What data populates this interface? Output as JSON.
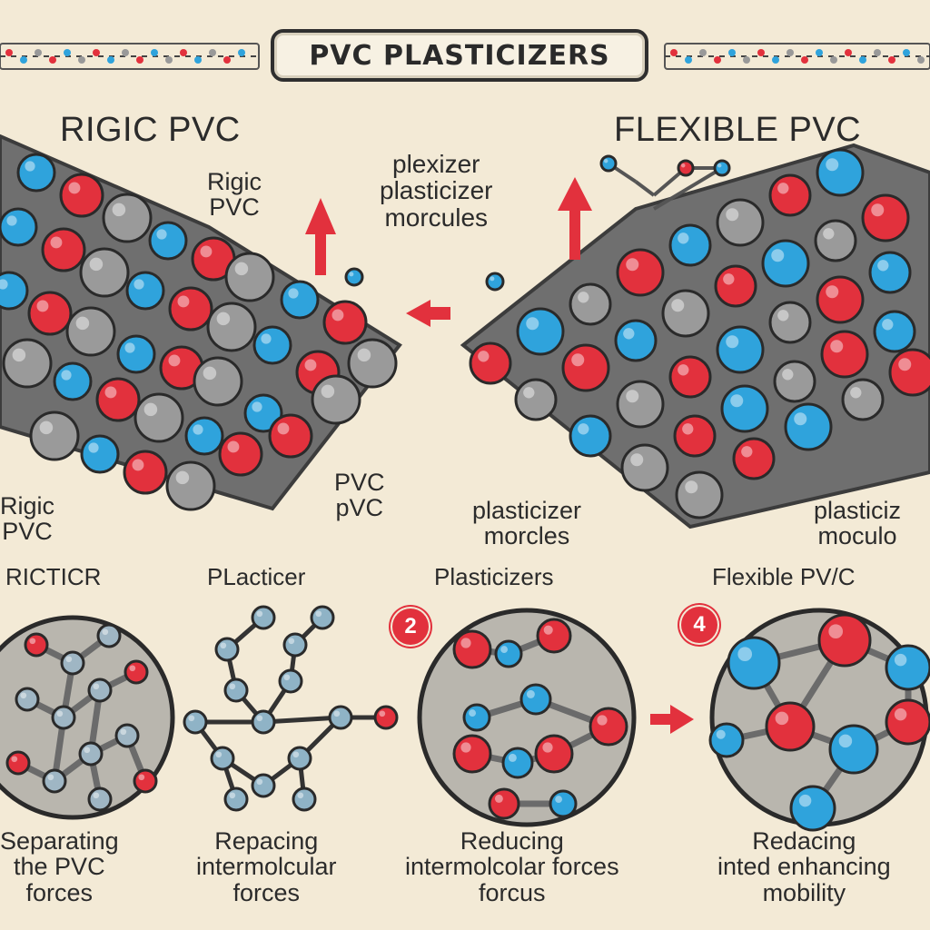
{
  "title": "PVC PLASTICIZERS",
  "colors": {
    "background": "#f3ead6",
    "red_atom": "#e2313d",
    "blue_atom": "#2fa3dc",
    "grey_chain": "#8c8c8c",
    "arrow": "#e2313d"
  },
  "top": {
    "left_heading": "RIGIC PVC",
    "right_heading": "FLEXIBLE PVC",
    "left_inner_label": "Rigic\nPVC",
    "center_label": "plexizer\nplasticizer\nmorcules",
    "left_bottom_label": "Rigic\nPVC",
    "center_left_label": "PVC\npVC",
    "center_right_label": "plasticizer\nmorcles",
    "right_bottom_label": "plasticiz\nmoculo"
  },
  "steps": [
    {
      "id": "1",
      "heading": "RICTICR",
      "caption": "Separating\nthe PVC\nforces",
      "badge": ""
    },
    {
      "id": "2",
      "heading": "PLacticer",
      "caption": "Repacing\nintermolcular\nforces",
      "badge": ""
    },
    {
      "id": "3",
      "heading": "Plasticizers",
      "caption": "Reducing\nintermolcolar forces\nforcus",
      "badge": "2"
    },
    {
      "id": "4",
      "heading": "Flexible PV/C",
      "caption": "Redacing\ninted enhancing\nmobility",
      "badge": "4"
    }
  ]
}
